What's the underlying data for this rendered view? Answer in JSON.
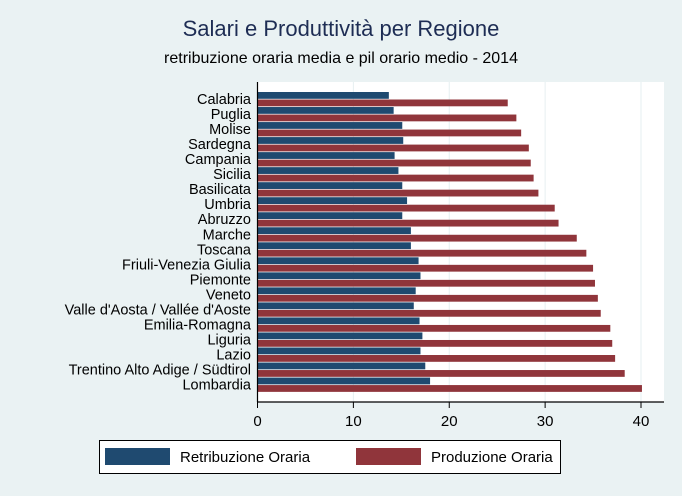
{
  "chart_data": {
    "type": "bar",
    "orientation": "horizontal",
    "title": "Salari e Produttività per Regione",
    "subtitle": "retribuzione oraria media e pil orario medio - 2014",
    "xlabel": "",
    "ylabel": "",
    "xlim": [
      0,
      42
    ],
    "xticks": [
      0,
      10,
      20,
      30,
      40
    ],
    "grid": true,
    "legend_position": "bottom",
    "categories": [
      "Calabria",
      "Puglia",
      "Molise",
      "Sardegna",
      "Campania",
      "Sicilia",
      "Basilicata",
      "Umbria",
      "Abruzzo",
      "Marche",
      "Toscana",
      "Friuli-Venezia Giulia",
      "Piemonte",
      "Veneto",
      "Valle d'Aosta / Vallée d'Aoste",
      "Emilia-Romagna",
      "Liguria",
      "Lazio",
      "Trentino Alto Adige / Südtirol",
      "Lombardia"
    ],
    "series": [
      {
        "name": "Retribuzione Oraria",
        "color": "#1f4a70",
        "values": [
          13.7,
          14.2,
          15.1,
          15.2,
          14.3,
          14.7,
          15.1,
          15.6,
          15.1,
          16.0,
          16.0,
          16.8,
          17.0,
          16.5,
          16.3,
          16.9,
          17.2,
          17.0,
          17.5,
          18.0
        ]
      },
      {
        "name": "Produzione Oraria",
        "color": "#90353b",
        "values": [
          26.1,
          27.0,
          27.5,
          28.3,
          28.5,
          28.8,
          29.3,
          31.0,
          31.4,
          33.3,
          34.3,
          35.0,
          35.2,
          35.5,
          35.8,
          36.8,
          37.0,
          37.3,
          38.3,
          40.1
        ]
      }
    ]
  }
}
